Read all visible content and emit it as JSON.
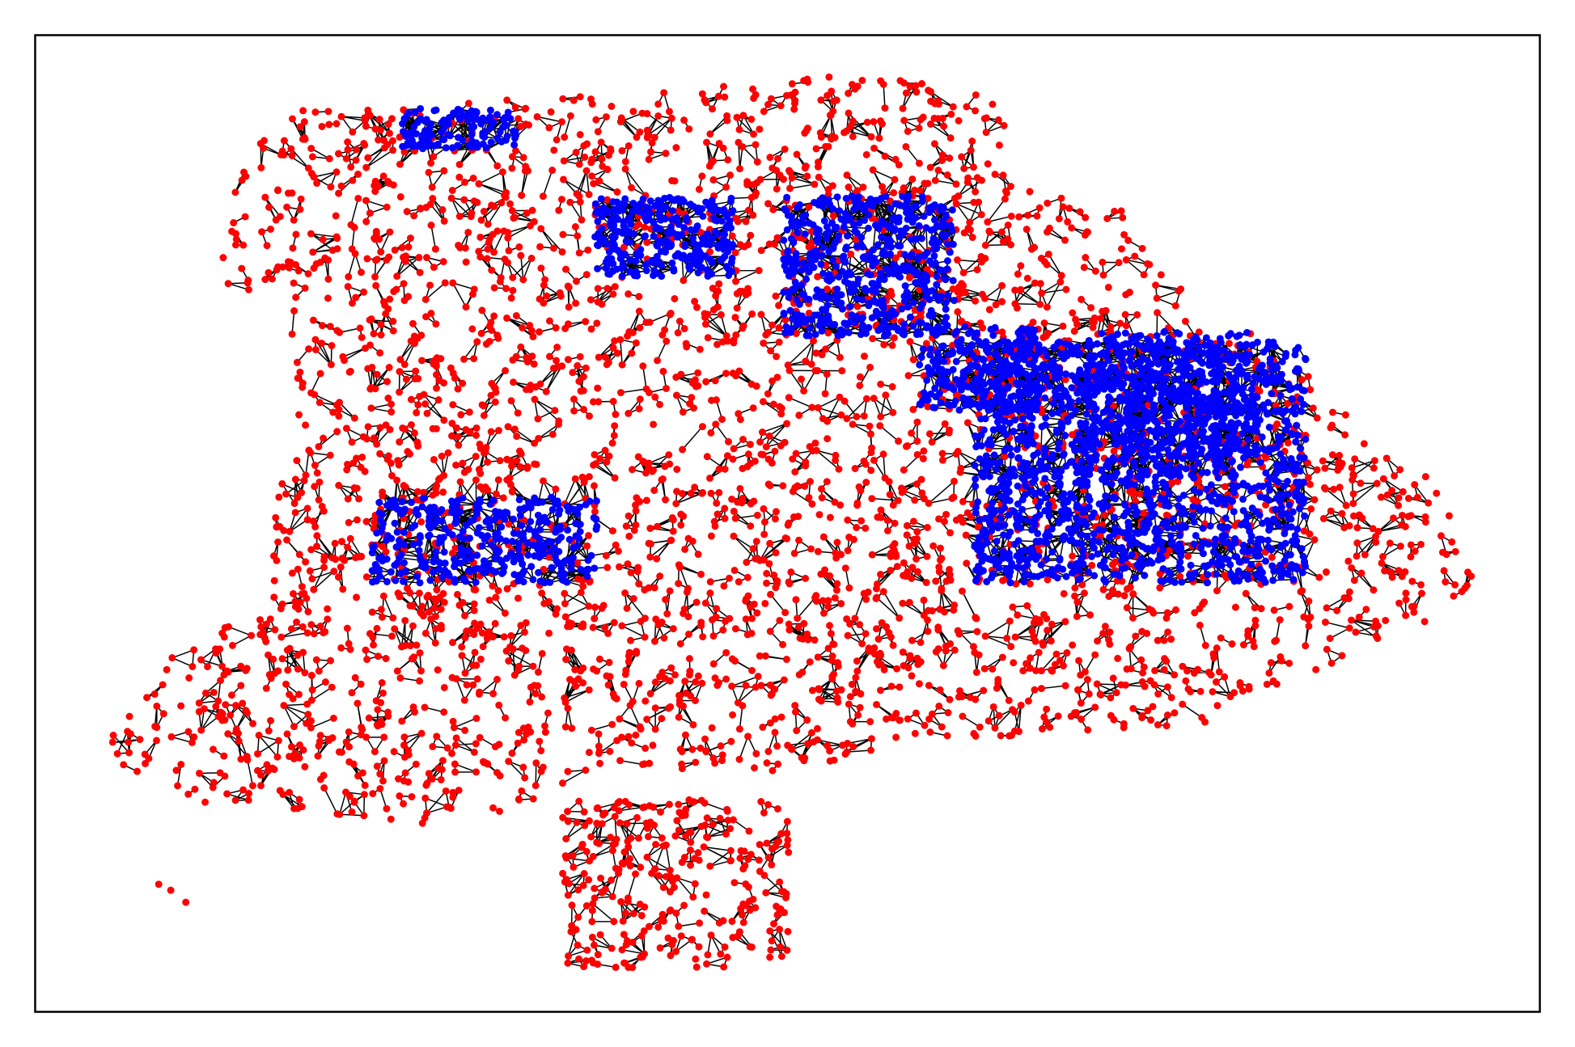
{
  "graph": {
    "node_color": "#ff0000",
    "highlight_color": "#0000ff",
    "edge_color": "#000000"
  }
}
